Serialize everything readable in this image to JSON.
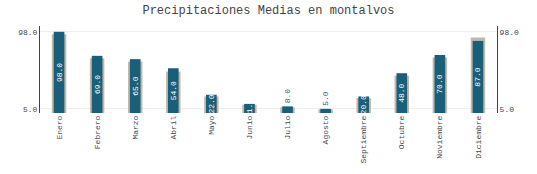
{
  "chart_data": {
    "type": "bar",
    "title": "Precipitaciones Medias en montalvos",
    "categories": [
      "Enero",
      "Febrero",
      "Marzo",
      "Abril",
      "Mayo",
      "Junio",
      "Julio",
      "Agosto",
      "Septiembre",
      "Octubre",
      "Noviembre",
      "Diciembre"
    ],
    "series": [
      {
        "color": "#c2b8a8",
        "values": [
          95.0,
          66.0,
          62.0,
          50.0,
          20.0,
          10.0,
          7.0,
          4.5,
          18.0,
          45.0,
          67.0,
          91.0
        ]
      },
      {
        "color": "#1a5f7a",
        "values": [
          98.0,
          69.0,
          65.0,
          54.0,
          22.0,
          11.0,
          8.0,
          5.0,
          20.0,
          48.0,
          70.0,
          87.0
        ],
        "value_labels": [
          "98.0",
          "69.0",
          "65.0",
          "54.0",
          "22.0",
          "11.0",
          "8.0",
          "5.0",
          "20.0",
          "48.0",
          "70.0",
          "87.0"
        ]
      }
    ],
    "ylim": [
      0,
      105
    ],
    "yticks": [
      {
        "value": 5.0,
        "label": "5.0"
      },
      {
        "value": 98.0,
        "label": "98.0"
      }
    ],
    "y2lim": [
      0,
      105
    ],
    "y2ticks": [
      {
        "value": 5.0,
        "label": "5.0"
      },
      {
        "value": 98.0,
        "label": "98.0"
      }
    ],
    "grid": true,
    "data_labels": true
  }
}
